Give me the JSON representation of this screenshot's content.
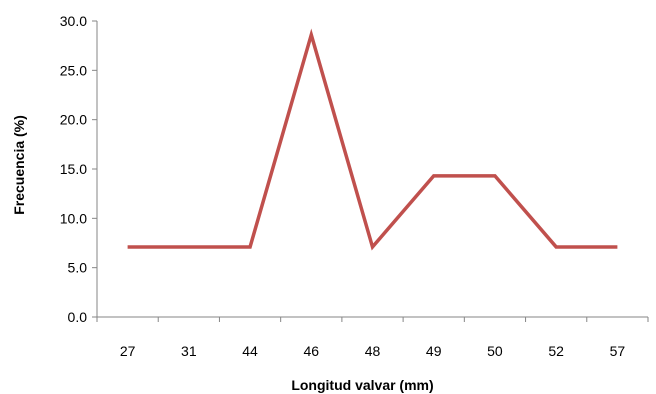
{
  "chart_data": {
    "type": "line",
    "categories": [
      "27",
      "31",
      "44",
      "46",
      "48",
      "49",
      "50",
      "52",
      "57"
    ],
    "series": [
      {
        "values": [
          7.1,
          7.1,
          7.1,
          28.6,
          7.1,
          14.3,
          14.3,
          7.1,
          7.1
        ],
        "color": "#C0504D"
      }
    ],
    "xlabel": "Longitud valvar  (mm)",
    "ylabel": "Frecuencia (%)",
    "ylim": [
      0,
      30
    ],
    "yticks": [
      "0.0",
      "5.0",
      "10.0",
      "15.0",
      "20.0",
      "25.0",
      "30.0"
    ],
    "grid": false,
    "legend": "none"
  }
}
